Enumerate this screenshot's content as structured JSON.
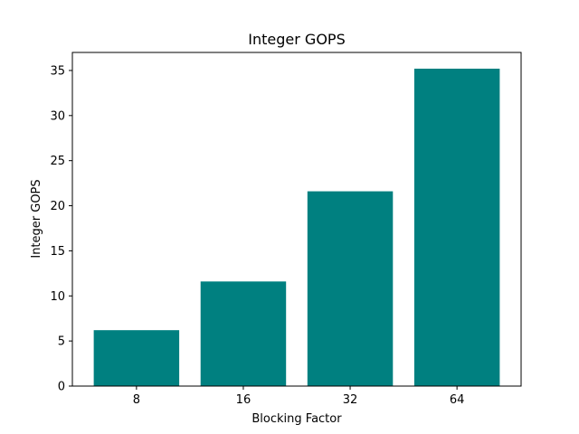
{
  "chart_data": {
    "type": "bar",
    "title": "Integer GOPS",
    "xlabel": "Blocking Factor",
    "ylabel": "Integer GOPS",
    "categories": [
      "8",
      "16",
      "32",
      "64"
    ],
    "values": [
      6.2,
      11.6,
      21.6,
      35.2
    ],
    "ylim": [
      0,
      37
    ],
    "yticks": [
      0,
      5,
      10,
      15,
      20,
      25,
      30,
      35
    ],
    "grid": false,
    "bar_color": "#008080"
  }
}
